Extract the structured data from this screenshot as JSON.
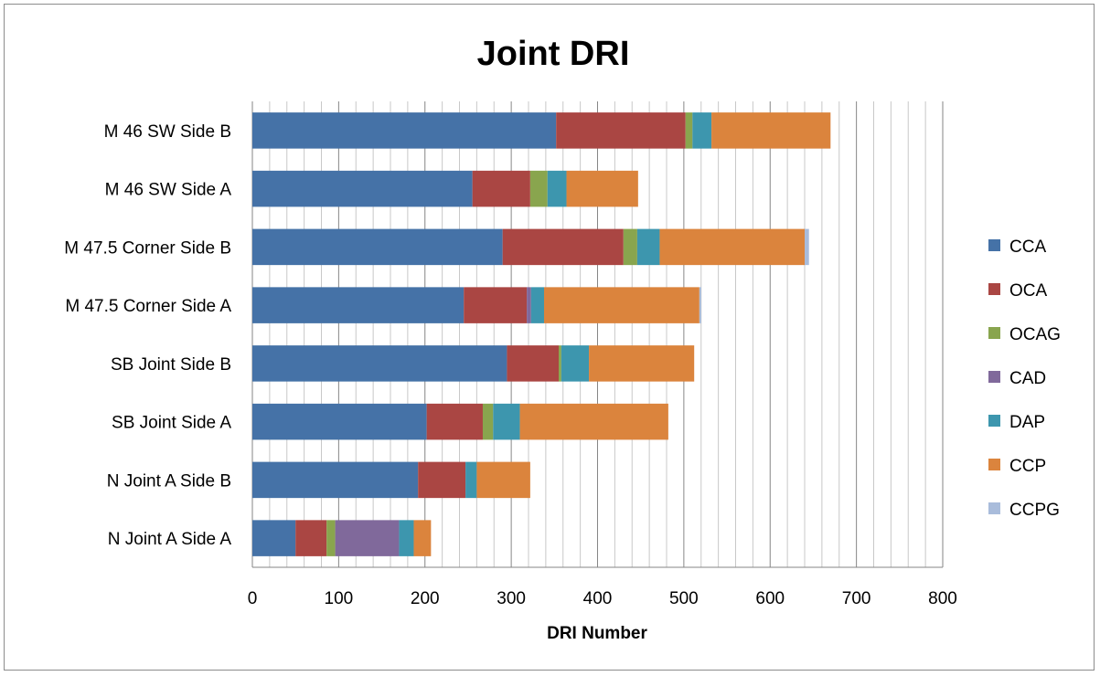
{
  "chart_data": {
    "type": "bar",
    "orientation": "horizontal",
    "stacked": true,
    "title": "Joint DRI",
    "xlabel": "DRI Number",
    "ylabel": "",
    "xlim": [
      0,
      800
    ],
    "x_ticks": [
      "0",
      "100",
      "200",
      "300",
      "400",
      "500",
      "600",
      "700",
      "800"
    ],
    "grid": {
      "major_x": true,
      "minor_x": true
    },
    "legend_position": "right",
    "categories": [
      "M 46 SW Side B",
      "M 46 SW Side A",
      "M 47.5 Corner Side B",
      "M 47.5 Corner Side A",
      "SB Joint Side B",
      "SB Joint Side A",
      "N Joint A Side B",
      "N Joint A Side A"
    ],
    "series": [
      {
        "name": "CCA",
        "color": "#4572A7",
        "values": [
          352,
          255,
          290,
          245,
          295,
          202,
          192,
          50
        ]
      },
      {
        "name": "OCA",
        "color": "#AA4643",
        "values": [
          150,
          67,
          140,
          73,
          60,
          65,
          55,
          36
        ]
      },
      {
        "name": "OCAG",
        "color": "#89A54E",
        "values": [
          8,
          20,
          16,
          0,
          3,
          12,
          0,
          10
        ]
      },
      {
        "name": "CAD",
        "color": "#80699B",
        "values": [
          0,
          0,
          0,
          5,
          0,
          0,
          0,
          74
        ]
      },
      {
        "name": "DAP",
        "color": "#3D96AE",
        "values": [
          22,
          22,
          26,
          15,
          32,
          31,
          13,
          17
        ]
      },
      {
        "name": "CCP",
        "color": "#DB843D",
        "values": [
          138,
          83,
          168,
          180,
          122,
          172,
          62,
          20
        ]
      },
      {
        "name": "CCPG",
        "color": "#A9BCDB",
        "values": [
          0,
          0,
          5,
          2,
          0,
          0,
          0,
          0
        ]
      }
    ]
  }
}
